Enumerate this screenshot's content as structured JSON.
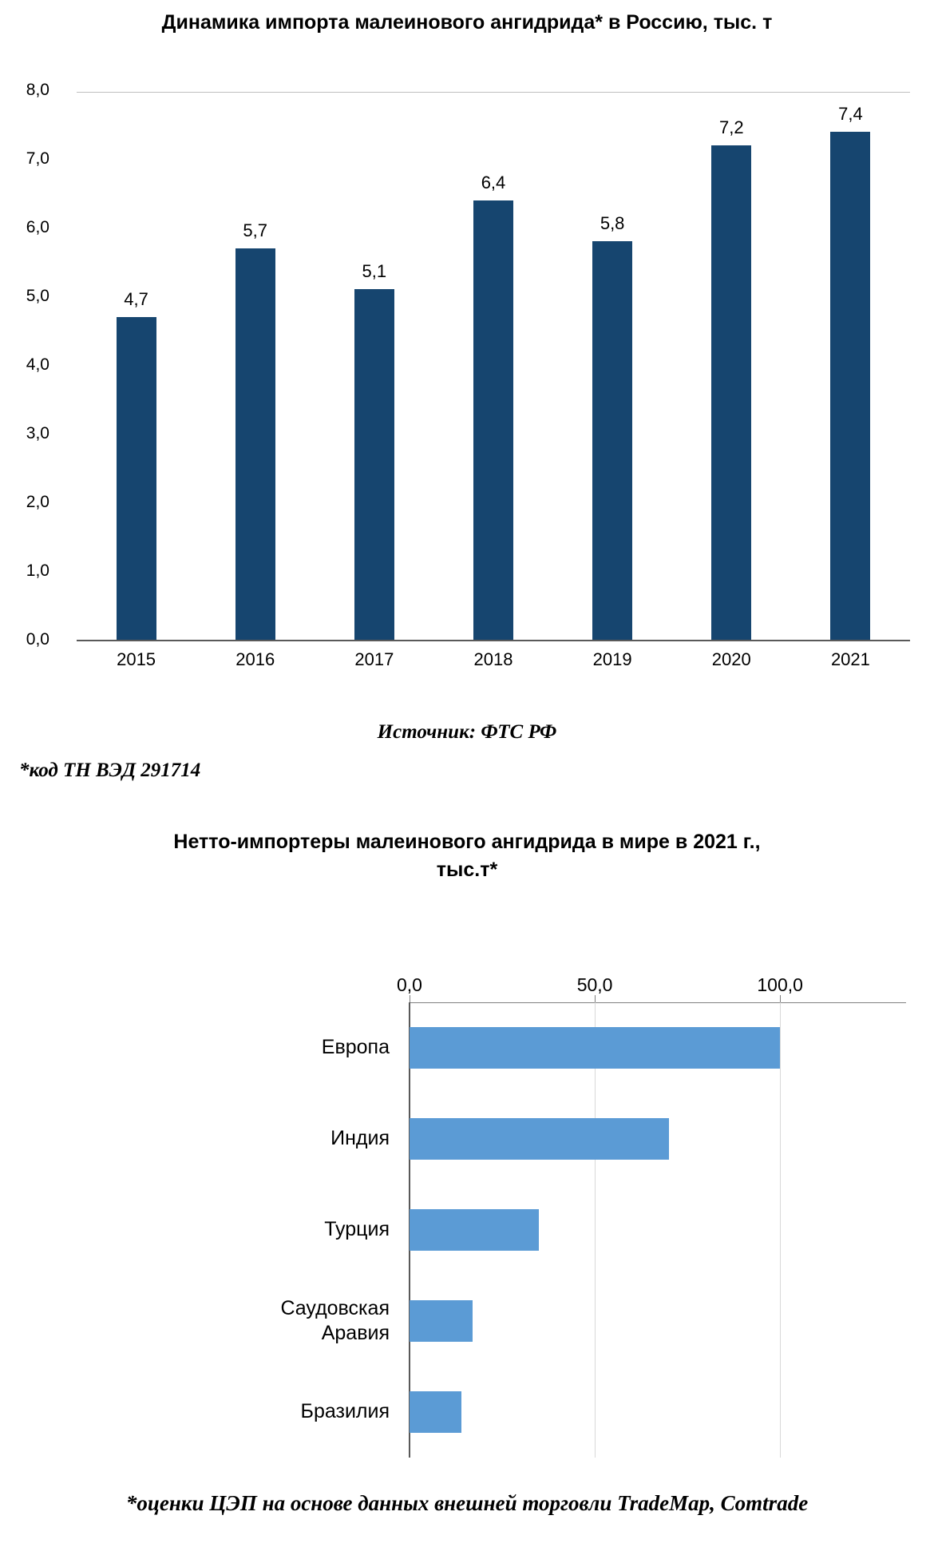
{
  "chart_data": [
    {
      "type": "bar",
      "title": "Динамика импорта малеинового ангидрида* в Россию, тыс. т",
      "categories": [
        "2015",
        "2016",
        "2017",
        "2018",
        "2019",
        "2020",
        "2021"
      ],
      "values": [
        4.7,
        5.7,
        5.1,
        6.4,
        5.8,
        7.2,
        7.4
      ],
      "value_labels": [
        "4,7",
        "5,7",
        "5,1",
        "6,4",
        "5,8",
        "7,2",
        "7,4"
      ],
      "ylim": [
        0,
        8
      ],
      "ytick_labels": [
        "0,0",
        "1,0",
        "2,0",
        "3,0",
        "4,0",
        "5,0",
        "6,0",
        "7,0",
        "8,0"
      ],
      "grid": false,
      "legend": "none",
      "bar_color": "#16456F",
      "source": "Источник: ФТС РФ",
      "footnote": "*код ТН ВЭД 291714"
    },
    {
      "type": "bar",
      "orientation": "horizontal",
      "title": "Нетто-импортеры малеинового ангидрида в мире в 2021 г., тыс.т*",
      "title_lines": [
        "Нетто-импортеры малеинового ангидрида в мире в 2021 г.,",
        "тыс.т*"
      ],
      "categories": [
        "Европа",
        "Индия",
        "Турция",
        "Саудовская Аравия",
        "Бразилия"
      ],
      "values": [
        100,
        70,
        35,
        17,
        14
      ],
      "xlim": [
        0,
        134
      ],
      "xtick_values": [
        0,
        50,
        100
      ],
      "xtick_labels": [
        "0,0",
        "50,0",
        "100,0"
      ],
      "grid": true,
      "legend": "none",
      "bar_color": "#5B9BD5",
      "footnote": "*оценки ЦЭП на основе данных внешней торговли TradeMap, Comtrade"
    }
  ]
}
